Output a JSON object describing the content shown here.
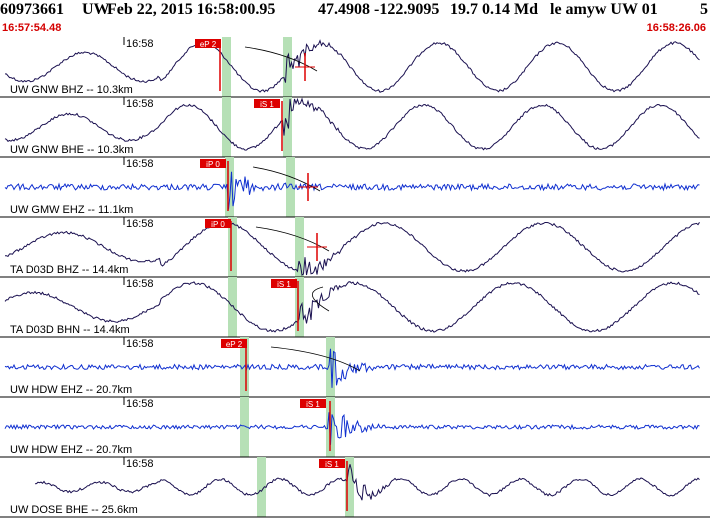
{
  "header": {
    "event_id": "60973661",
    "network": "UW",
    "datetime": "Feb 22, 2015 16:58:00.95",
    "location": "47.4908 -122.9095",
    "depth_mag": "19.7 0.14 Md",
    "flags": "le amyw UW 01",
    "extra": "5"
  },
  "time_axis": {
    "start_label": "16:57:54.48",
    "end_label": "16:58:26.06",
    "tick_label": "16:58"
  },
  "colors": {
    "broadband_trace": "#1a1050",
    "short_period_trace": "#1030d0",
    "pick_marker": "#dd0000",
    "pick_window": "#b6e0b6",
    "model_curve": "#000000"
  },
  "channels": [
    {
      "label": "UW GNW BHZ -- 10.3km",
      "pick": "eP 2",
      "type": "broadband"
    },
    {
      "label": "UW GNW BHE -- 10.3km",
      "pick": "iS 1",
      "type": "broadband"
    },
    {
      "label": "UW GMW EHZ -- 11.1km",
      "pick": "iP 0",
      "type": "short_period"
    },
    {
      "label": "TA D03D BHZ -- 14.4km",
      "pick": "iP 0",
      "type": "broadband"
    },
    {
      "label": "TA D03D BHN -- 14.4km",
      "pick": "iS 1",
      "type": "broadband"
    },
    {
      "label": "UW HDW EHZ -- 20.7km",
      "pick": "eP 2",
      "type": "short_period"
    },
    {
      "label": "UW HDW EHZ -- 20.7km",
      "pick": "iS 1",
      "type": "short_period"
    },
    {
      "label": "UW DOSE BHE -- 25.6km",
      "pick": "iS 1",
      "type": "broadband"
    }
  ]
}
